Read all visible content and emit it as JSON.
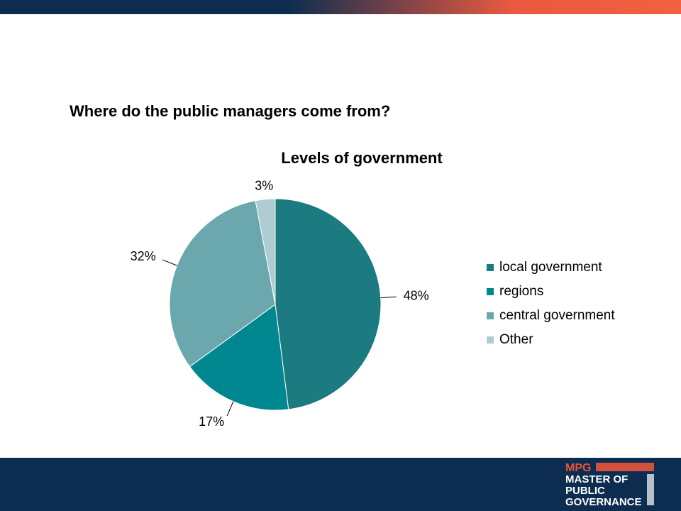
{
  "heading": "Where do the public managers come from?",
  "chart_data": {
    "type": "pie",
    "title": "Levels of government",
    "categories": [
      "local government",
      "regions",
      "central government",
      "Other"
    ],
    "values": [
      48,
      17,
      32,
      3
    ],
    "value_labels": [
      "48%",
      "17%",
      "32%",
      "3%"
    ],
    "colors": [
      "#1b7b80",
      "#00878f",
      "#6ba8ae",
      "#afccd2"
    ],
    "legend": "right"
  },
  "logo": {
    "lines": [
      "MPG",
      "MASTER OF",
      "PUBLIC",
      "GOVERNANCE"
    ]
  }
}
